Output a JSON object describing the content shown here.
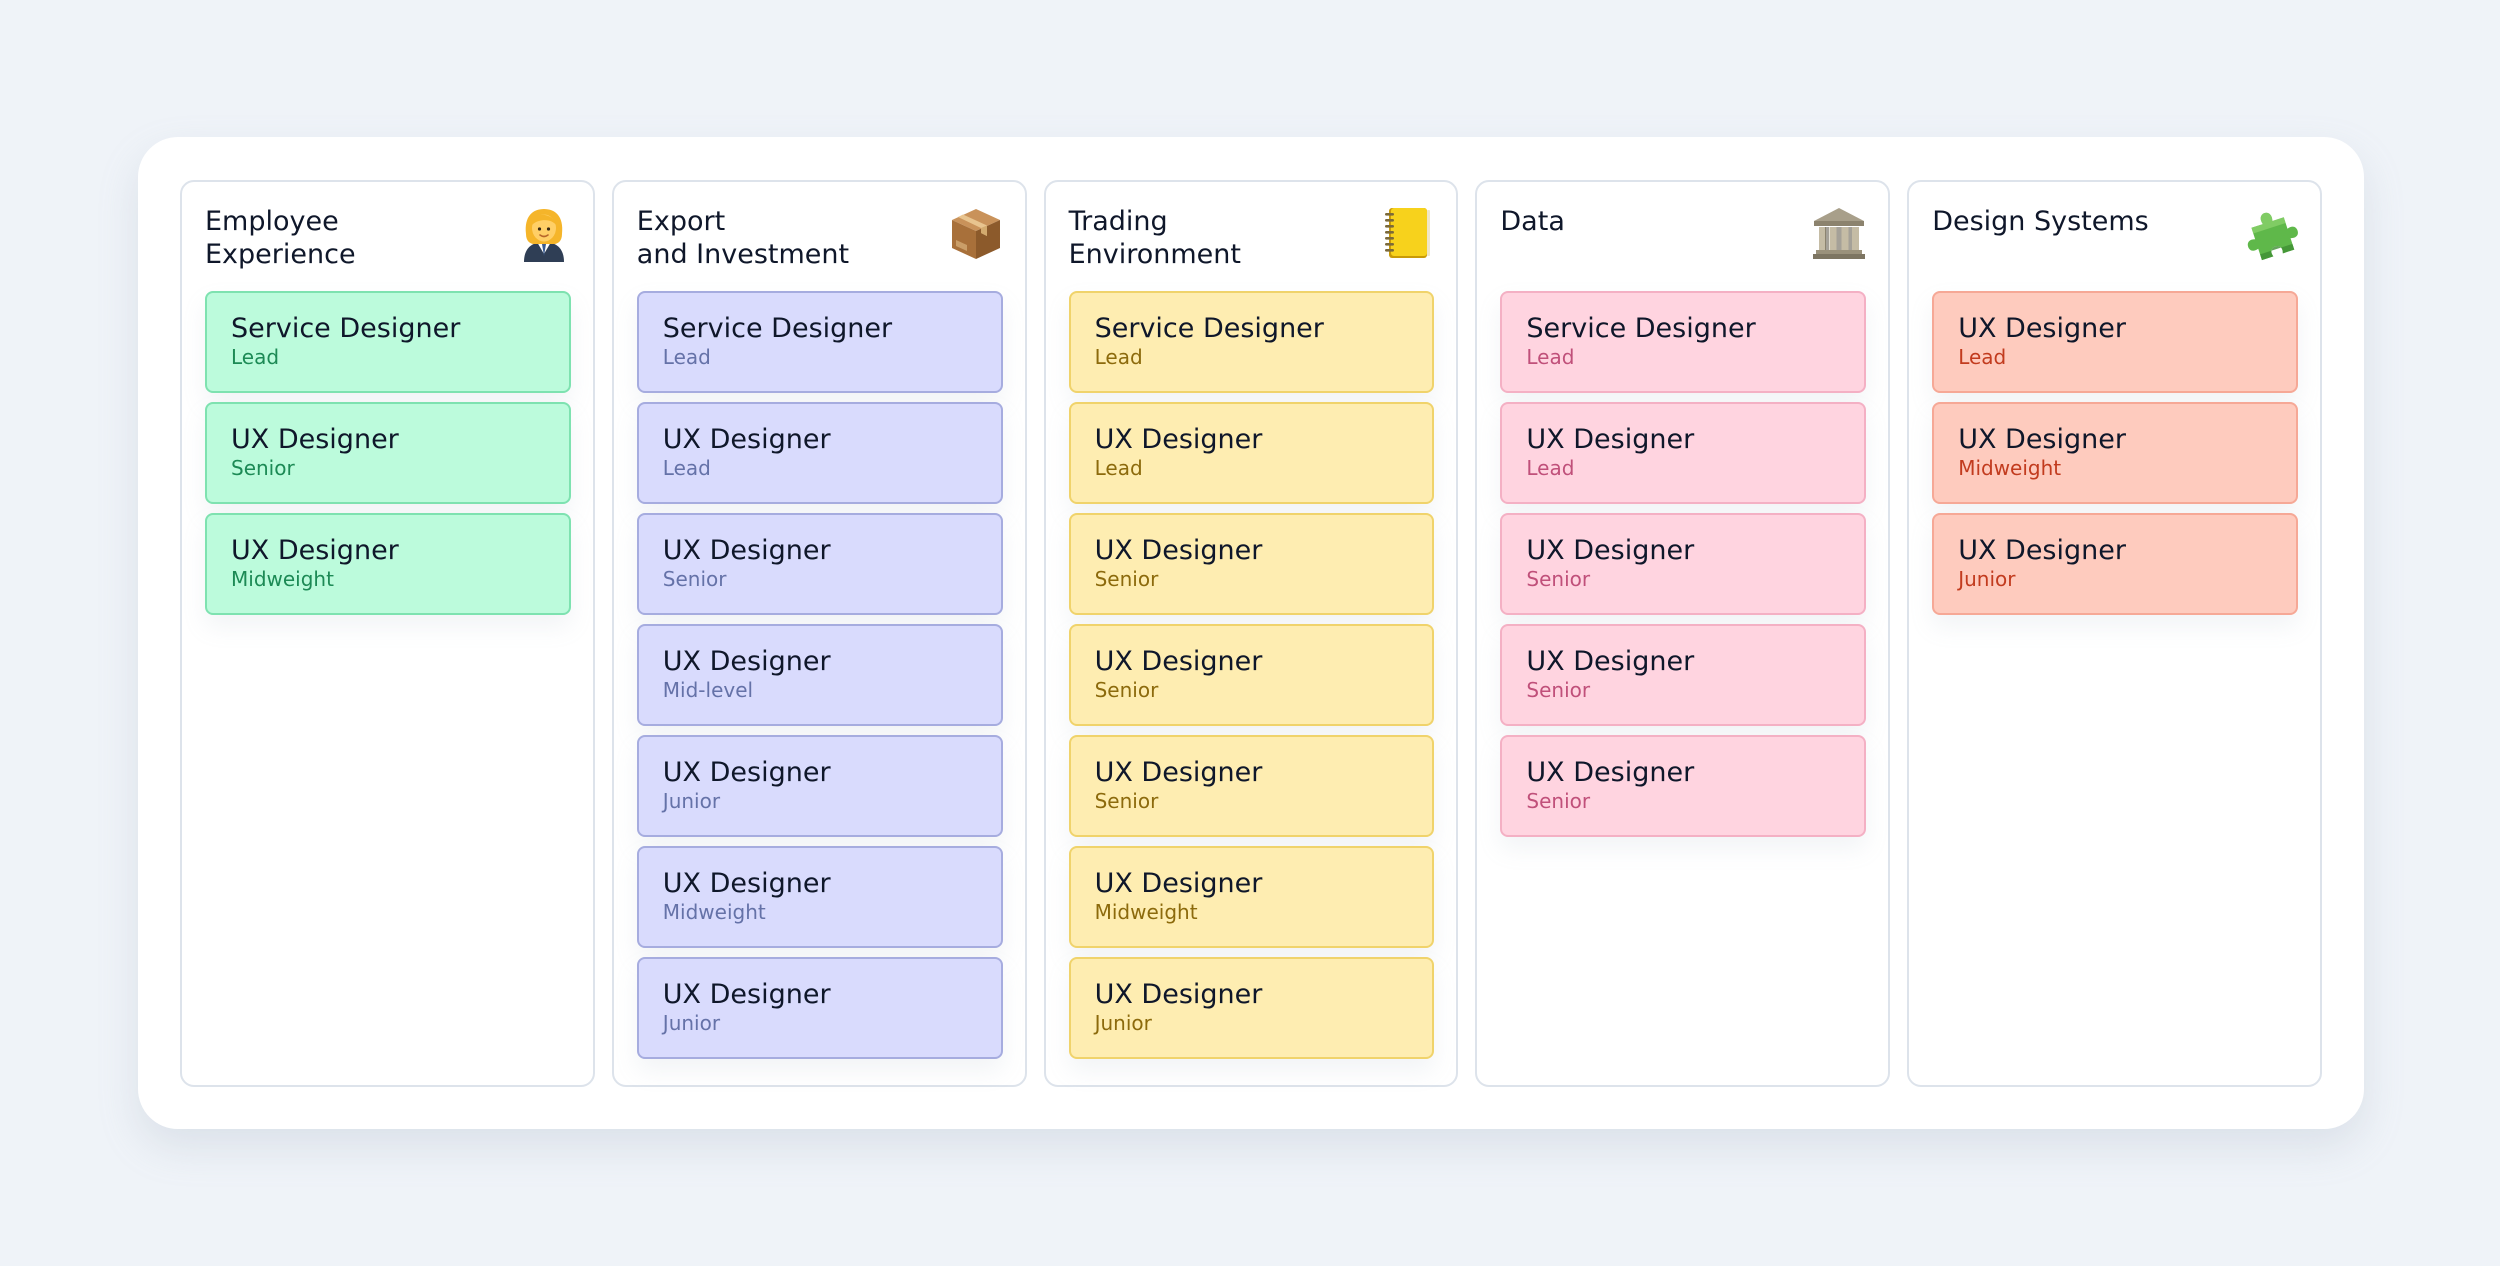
{
  "columns": [
    {
      "title": "Employee\nExperience",
      "icon": "woman-office-worker-icon",
      "colors": {
        "bg": "#bcfbdc",
        "border": "#7ee2b0",
        "level": "#1c8a55"
      },
      "cards": [
        {
          "title": "Service Designer",
          "level": "Lead"
        },
        {
          "title": "UX Designer",
          "level": "Senior"
        },
        {
          "title": "UX Designer",
          "level": "Midweight"
        }
      ]
    },
    {
      "title": "Export\nand Investment",
      "icon": "package-box-icon",
      "colors": {
        "bg": "#d9dbfd",
        "border": "#a6acdf",
        "level": "#6572a8"
      },
      "cards": [
        {
          "title": "Service Designer",
          "level": "Lead"
        },
        {
          "title": "UX Designer",
          "level": "Lead"
        },
        {
          "title": "UX Designer",
          "level": "Senior"
        },
        {
          "title": "UX Designer",
          "level": "Mid-level"
        },
        {
          "title": "UX Designer",
          "level": "Junior"
        },
        {
          "title": "UX Designer",
          "level": "Midweight"
        },
        {
          "title": "UX Designer",
          "level": "Junior"
        }
      ]
    },
    {
      "title": "Trading\nEnvironment",
      "icon": "notebook-icon",
      "colors": {
        "bg": "#feedb1",
        "border": "#f0d36b",
        "level": "#8c6a0c"
      },
      "cards": [
        {
          "title": "Service Designer",
          "level": "Lead"
        },
        {
          "title": "UX Designer",
          "level": "Lead"
        },
        {
          "title": "UX Designer",
          "level": "Senior"
        },
        {
          "title": "UX Designer",
          "level": "Senior"
        },
        {
          "title": "UX Designer",
          "level": "Senior"
        },
        {
          "title": "UX Designer",
          "level": "Midweight"
        },
        {
          "title": "UX Designer",
          "level": "Junior"
        }
      ]
    },
    {
      "title": "Data",
      "icon": "classical-building-icon",
      "colors": {
        "bg": "#ffd4e0",
        "border": "#f4b0c4",
        "level": "#c0507a"
      },
      "cards": [
        {
          "title": "Service Designer",
          "level": "Lead"
        },
        {
          "title": "UX Designer",
          "level": "Lead"
        },
        {
          "title": "UX Designer",
          "level": "Senior"
        },
        {
          "title": "UX Designer",
          "level": "Senior"
        },
        {
          "title": "UX Designer",
          "level": "Senior"
        }
      ]
    },
    {
      "title": "Design Systems",
      "icon": "puzzle-piece-icon",
      "colors": {
        "bg": "#fecbbe",
        "border": "#f6a896",
        "level": "#c23b1e"
      },
      "cards": [
        {
          "title": "UX Designer",
          "level": "Lead"
        },
        {
          "title": "UX Designer",
          "level": "Midweight"
        },
        {
          "title": "UX Designer",
          "level": "Junior"
        }
      ]
    }
  ]
}
